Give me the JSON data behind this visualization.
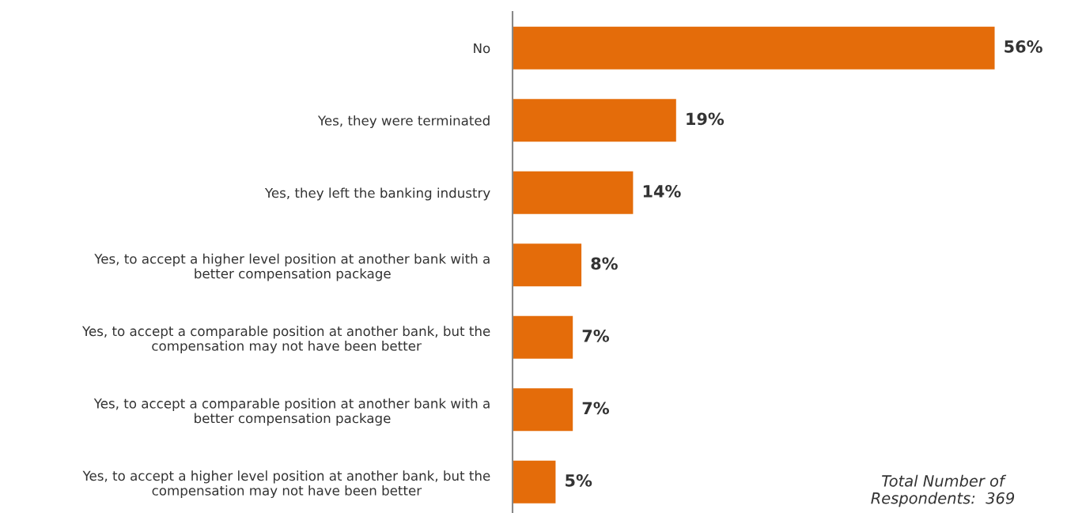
{
  "chart_data": {
    "type": "bar",
    "orientation": "horizontal",
    "categories": [
      "No",
      "Yes, they were terminated",
      "Yes, they left the banking industry",
      "Yes, to accept a higher level position at another bank with a\nbetter compensation package",
      "Yes, to accept a comparable position at another bank, but the\ncompensation may not have been better",
      "Yes, to accept a comparable position at another bank with a\nbetter compensation package",
      "Yes, to accept a higher level position at another bank, but the\ncompensation may not have been better"
    ],
    "values": [
      56,
      19,
      14,
      8,
      7,
      7,
      5
    ],
    "value_labels": [
      "56%",
      "19%",
      "14%",
      "8%",
      "7%",
      "7%",
      "5%"
    ],
    "color": "#e46c0a",
    "tick_labels": "y",
    "grid": false,
    "legend": false,
    "annotations": [
      "Total Number of\nRespondents:  369"
    ]
  }
}
